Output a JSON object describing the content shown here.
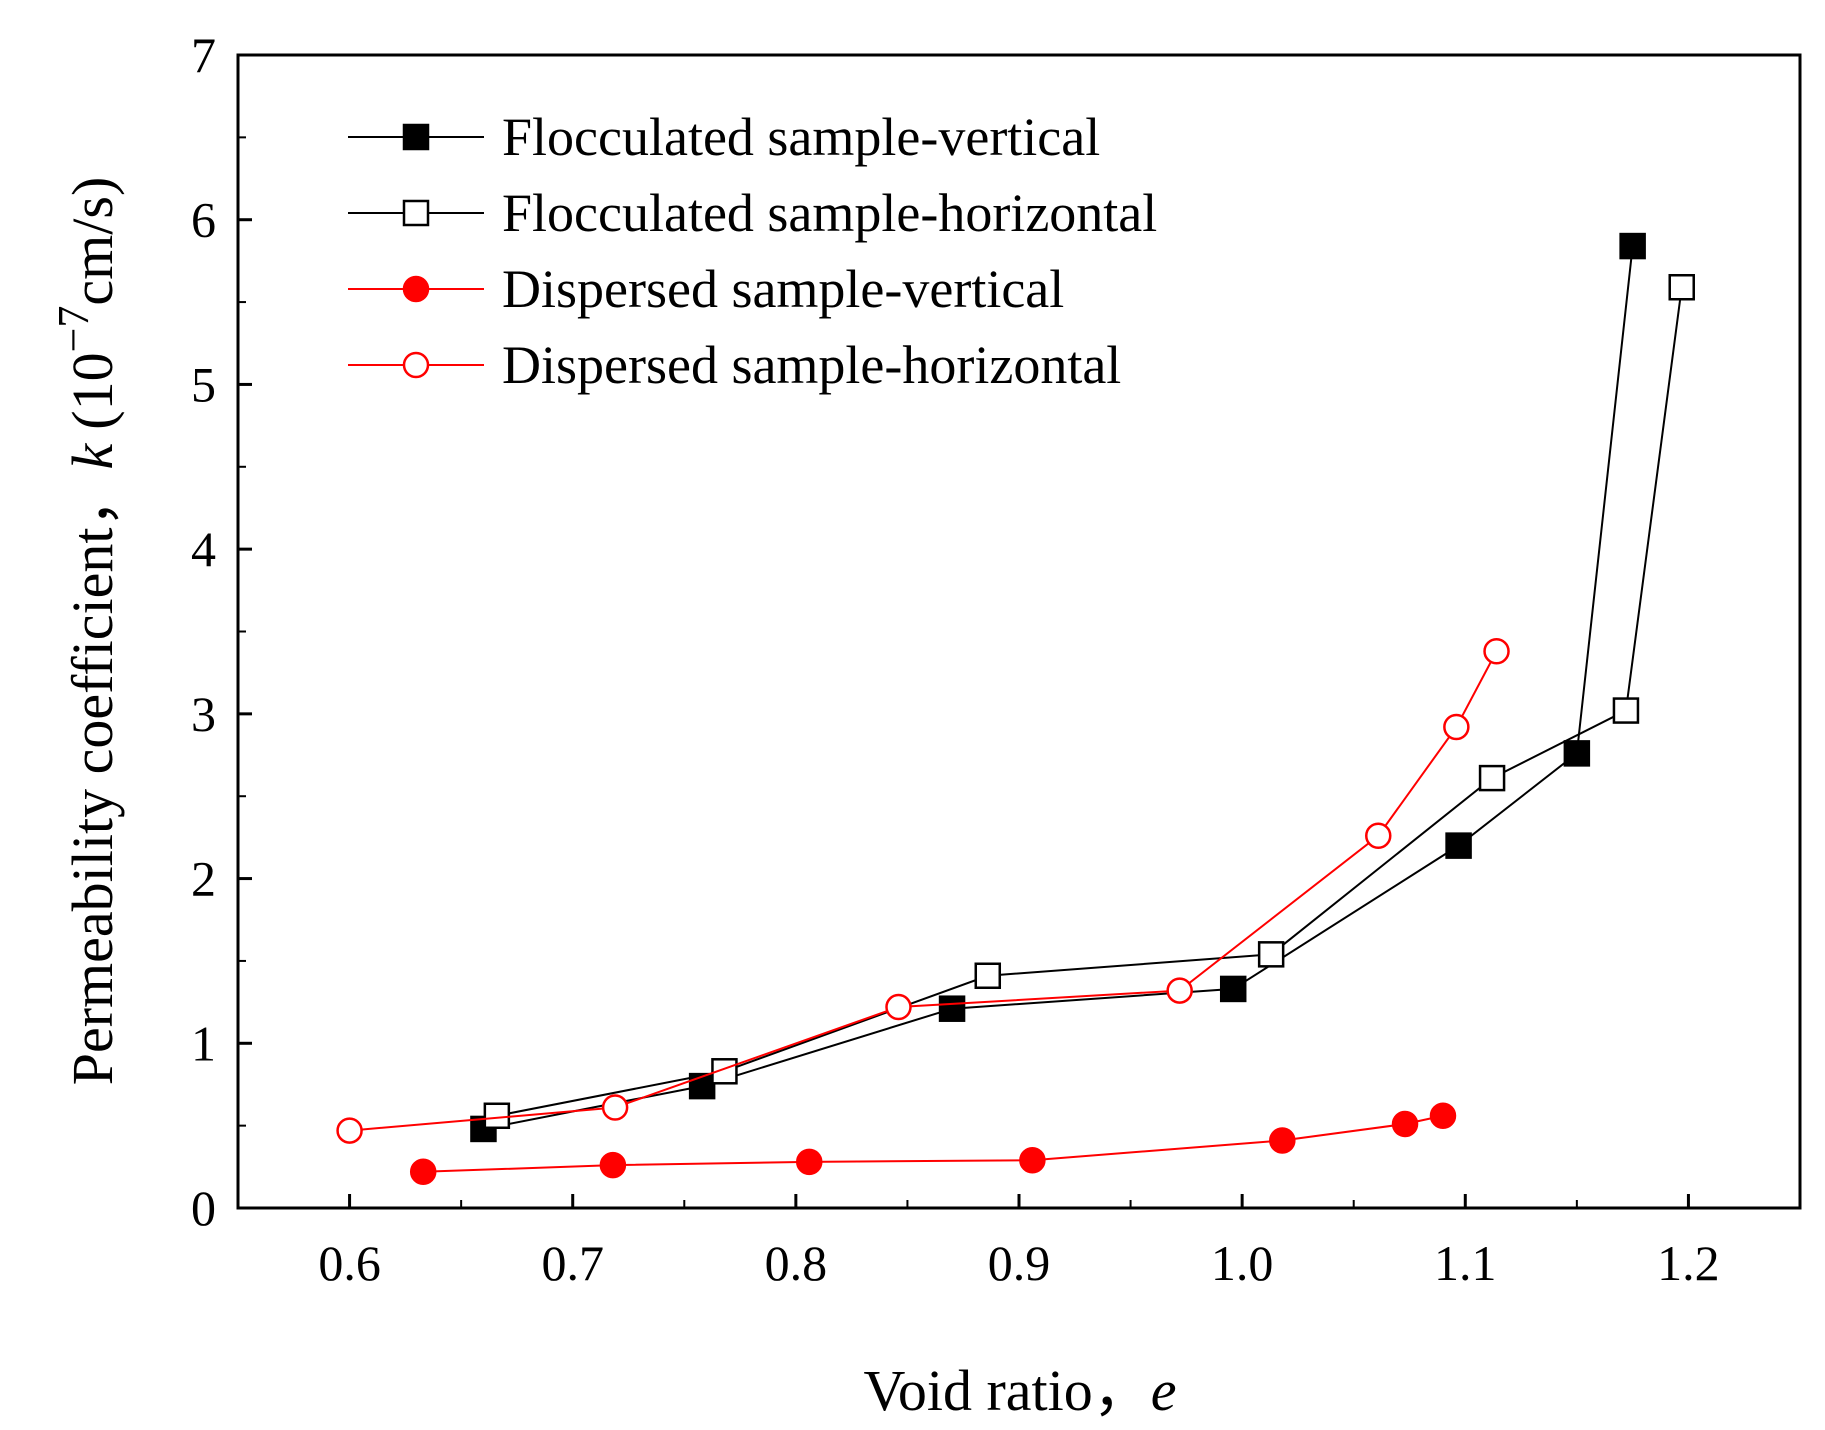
{
  "chart_data": {
    "type": "line",
    "title": "",
    "xlabel": "Void ratio，",
    "xlabel_var": "e",
    "ylabel_prefix": "Permeability coefficient，",
    "ylabel_var": "k",
    "ylabel_unit_open": "(10",
    "ylabel_unit_exp": "−7",
    "ylabel_unit_close": "cm/s)",
    "xlim": [
      0.55,
      1.25
    ],
    "ylim": [
      0,
      7
    ],
    "grid": false,
    "legend_position": "top-left",
    "x_ticks": [
      {
        "value": 0.6,
        "label": "0.6"
      },
      {
        "value": 0.7,
        "label": "0.7"
      },
      {
        "value": 0.8,
        "label": "0.8"
      },
      {
        "value": 0.9,
        "label": "0.9"
      },
      {
        "value": 1.0,
        "label": "1.0"
      },
      {
        "value": 1.1,
        "label": "1.1"
      },
      {
        "value": 1.2,
        "label": "1.2"
      }
    ],
    "y_ticks": [
      {
        "value": 0,
        "label": "0"
      },
      {
        "value": 1,
        "label": "1"
      },
      {
        "value": 2,
        "label": "2"
      },
      {
        "value": 3,
        "label": "3"
      },
      {
        "value": 4,
        "label": "4"
      },
      {
        "value": 5,
        "label": "5"
      },
      {
        "value": 6,
        "label": "6"
      },
      {
        "value": 7,
        "label": "7"
      }
    ],
    "series": [
      {
        "name": "Flocculated sample-vertical",
        "color": "#000000",
        "marker": "square",
        "filled": true,
        "points": [
          [
            0.66,
            0.48
          ],
          [
            0.758,
            0.74
          ],
          [
            0.87,
            1.21
          ],
          [
            0.996,
            1.33
          ],
          [
            1.097,
            2.2
          ],
          [
            1.15,
            2.76
          ],
          [
            1.175,
            5.84
          ]
        ]
      },
      {
        "name": "Flocculated sample-horizontal",
        "color": "#000000",
        "marker": "square",
        "filled": false,
        "points": [
          [
            0.666,
            0.56
          ],
          [
            0.768,
            0.83
          ],
          [
            0.886,
            1.41
          ],
          [
            1.013,
            1.54
          ],
          [
            1.112,
            2.61
          ],
          [
            1.172,
            3.02
          ],
          [
            1.197,
            5.59
          ]
        ]
      },
      {
        "name": "Dispersed sample-vertical",
        "color": "#ff0000",
        "marker": "circle",
        "filled": true,
        "points": [
          [
            0.633,
            0.22
          ],
          [
            0.718,
            0.26
          ],
          [
            0.806,
            0.28
          ],
          [
            0.906,
            0.29
          ],
          [
            1.018,
            0.41
          ],
          [
            1.073,
            0.51
          ],
          [
            1.09,
            0.56
          ]
        ]
      },
      {
        "name": "Dispersed sample-horizontal",
        "color": "#ff0000",
        "marker": "circle",
        "filled": false,
        "points": [
          [
            0.6,
            0.47
          ],
          [
            0.719,
            0.61
          ],
          [
            0.846,
            1.22
          ],
          [
            0.972,
            1.32
          ],
          [
            1.061,
            2.26
          ],
          [
            1.096,
            2.92
          ],
          [
            1.114,
            3.38
          ]
        ]
      }
    ]
  }
}
